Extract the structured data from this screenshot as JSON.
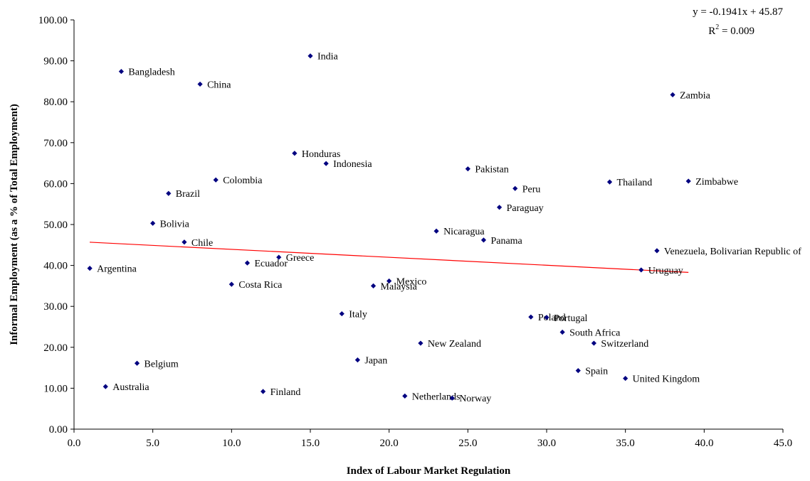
{
  "chart_data": {
    "type": "scatter",
    "title": "",
    "xlabel": "Index of Labour Market Regulation",
    "ylabel": "Informal Employment (as a % of Total Employment)",
    "xlim": [
      0,
      45
    ],
    "ylim": [
      0,
      100
    ],
    "xticks": [
      "0.0",
      "5.0",
      "10.0",
      "15.0",
      "20.0",
      "25.0",
      "30.0",
      "35.0",
      "40.0",
      "45.0"
    ],
    "yticks": [
      "0.00",
      "10.00",
      "20.00",
      "30.00",
      "40.00",
      "50.00",
      "60.00",
      "70.00",
      "80.00",
      "90.00",
      "100.00"
    ],
    "grid": false,
    "marker_color": "#000080",
    "trendline": {
      "equation": "y = -0.1941x + 45.87",
      "r2_prefix": "R",
      "r2_sup": "2",
      "r2_value": " = 0.009",
      "slope": -0.1941,
      "intercept": 45.87,
      "x_range": [
        1,
        39
      ],
      "color": "#ff0000"
    },
    "points": [
      {
        "label": "Argentina",
        "x": 1,
        "y": 39.3
      },
      {
        "label": "Australia",
        "x": 2,
        "y": 10.4
      },
      {
        "label": "Bangladesh",
        "x": 3,
        "y": 87.4
      },
      {
        "label": "Belgium",
        "x": 4,
        "y": 16.1
      },
      {
        "label": "Bolivia",
        "x": 5,
        "y": 50.3
      },
      {
        "label": "Brazil",
        "x": 6,
        "y": 57.6
      },
      {
        "label": "Chile",
        "x": 7,
        "y": 45.7
      },
      {
        "label": "China",
        "x": 8,
        "y": 84.3
      },
      {
        "label": "Colombia",
        "x": 9,
        "y": 60.9
      },
      {
        "label": "Costa Rica",
        "x": 10,
        "y": 35.4
      },
      {
        "label": "Ecuador",
        "x": 11,
        "y": 40.6
      },
      {
        "label": "Finland",
        "x": 12,
        "y": 9.2
      },
      {
        "label": "Greece",
        "x": 13,
        "y": 42.0
      },
      {
        "label": "Honduras",
        "x": 14,
        "y": 67.4
      },
      {
        "label": "India",
        "x": 15,
        "y": 91.2
      },
      {
        "label": "Indonesia",
        "x": 16,
        "y": 64.9
      },
      {
        "label": "Italy",
        "x": 17,
        "y": 28.2
      },
      {
        "label": "Japan",
        "x": 18,
        "y": 16.9
      },
      {
        "label": "Malaysia",
        "x": 19,
        "y": 35.0
      },
      {
        "label": "Mexico",
        "x": 20,
        "y": 36.2
      },
      {
        "label": "Netherlands",
        "x": 21,
        "y": 8.1
      },
      {
        "label": "New Zealand",
        "x": 22,
        "y": 21.0
      },
      {
        "label": "Nicaragua",
        "x": 23,
        "y": 48.4
      },
      {
        "label": "Norway",
        "x": 24,
        "y": 7.6
      },
      {
        "label": "Pakistan",
        "x": 25,
        "y": 63.6
      },
      {
        "label": "Panama",
        "x": 26,
        "y": 46.2
      },
      {
        "label": "Paraguay",
        "x": 27,
        "y": 54.2
      },
      {
        "label": "Peru",
        "x": 28,
        "y": 58.8
      },
      {
        "label": "Poland",
        "x": 29,
        "y": 27.4
      },
      {
        "label": "Portugal",
        "x": 30,
        "y": 27.3
      },
      {
        "label": "South Africa",
        "x": 31,
        "y": 23.7
      },
      {
        "label": "Spain",
        "x": 32,
        "y": 14.3
      },
      {
        "label": "Switzerland",
        "x": 33,
        "y": 21.0
      },
      {
        "label": "Thailand",
        "x": 34,
        "y": 60.4
      },
      {
        "label": "United Kingdom",
        "x": 35,
        "y": 12.4
      },
      {
        "label": "Uruguay",
        "x": 36,
        "y": 38.9
      },
      {
        "label": "Venezuela, Bolivarian Republic of",
        "x": 37,
        "y": 43.6
      },
      {
        "label": "Zambia",
        "x": 38,
        "y": 81.7
      },
      {
        "label": "Zimbabwe",
        "x": 39,
        "y": 60.6
      }
    ]
  }
}
